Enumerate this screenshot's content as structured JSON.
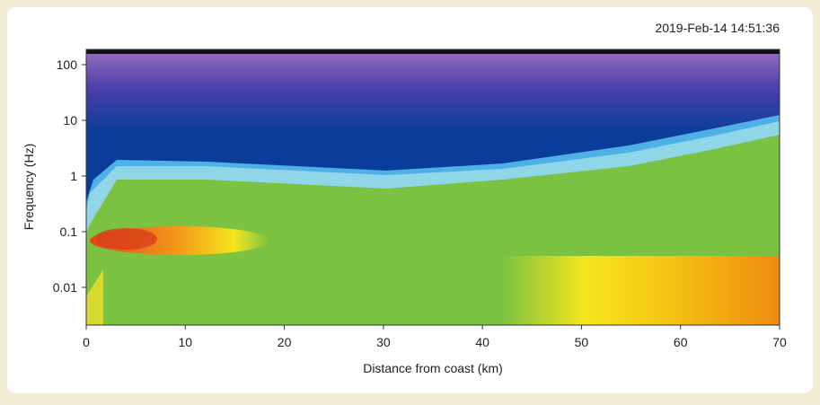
{
  "chart_data": {
    "type": "spectrogram",
    "annotation": "2019-Feb-14 14:51:36",
    "xlabel": "Distance from coast (km)",
    "ylabel": "Frequency (Hz)",
    "xlim": [
      0,
      70
    ],
    "xticks": [
      0,
      10,
      20,
      30,
      40,
      50,
      60,
      70
    ],
    "ylim": [
      0.0021,
      188
    ],
    "yscale": "log",
    "yticks": [
      0.01,
      0.1,
      1,
      10,
      100
    ]
  }
}
